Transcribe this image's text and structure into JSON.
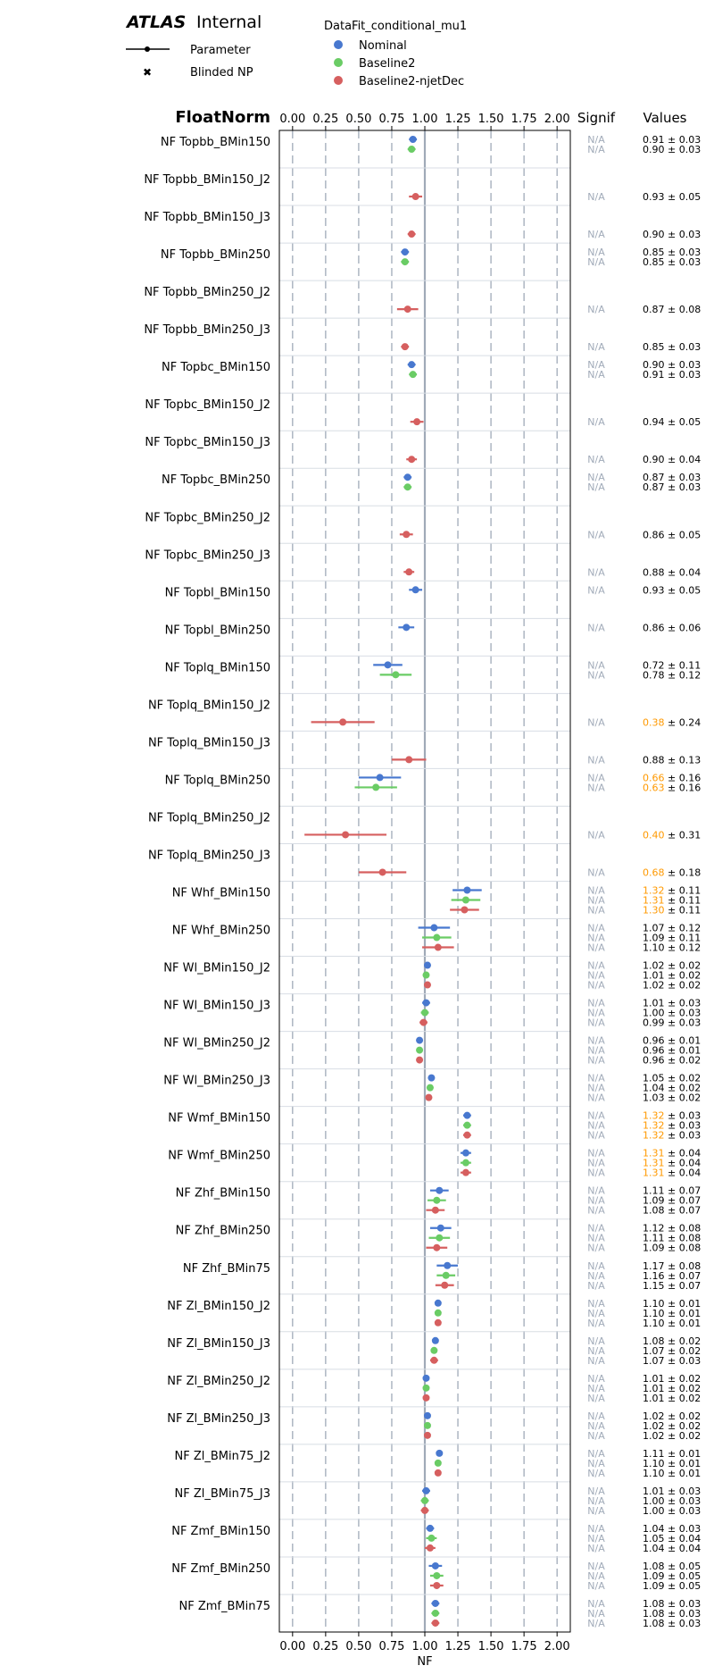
{
  "header": {
    "brand": "ATLAS",
    "brand_suffix": "Internal",
    "legend_title": "DataFit_conditional_mu1",
    "marker_legend": [
      {
        "label": "Parameter",
        "icon": "errorbar-marker-icon"
      },
      {
        "label": "Blinded NP",
        "icon": "x-marker-icon"
      }
    ]
  },
  "columns": {
    "section_title": "FloatNorm",
    "signif_header": "Signif",
    "values_header": "Values",
    "signif_text": "N/A"
  },
  "colors": {
    "highlight": "#ff9900",
    "na_text": "#a0aab8",
    "grid": "#a0aab8",
    "ref_line": "#a0aab8"
  },
  "chart_data": {
    "type": "scatter",
    "orientation": "horizontal-errorbar",
    "xlabel": "NF",
    "xlim": [
      -0.1,
      2.1
    ],
    "xticks": [
      "0.00",
      "0.25",
      "0.50",
      "0.75",
      "1.00",
      "1.25",
      "1.50",
      "1.75",
      "2.00"
    ],
    "reference_line": 1.0,
    "grid": true,
    "legend_position": "top",
    "series": [
      {
        "name": "Nominal",
        "color": "#4878cf"
      },
      {
        "name": "Baseline2",
        "color": "#6acc65"
      },
      {
        "name": "Baseline2-njetDec",
        "color": "#d65f5f"
      }
    ],
    "parameters": [
      {
        "name": "NF Topbb_BMin150",
        "entries": [
          {
            "s": 0,
            "v": 0.91,
            "e": 0.03
          },
          {
            "s": 1,
            "v": 0.9,
            "e": 0.03
          }
        ]
      },
      {
        "name": "NF Topbb_BMin150_J2",
        "entries": [
          {
            "s": 2,
            "v": 0.93,
            "e": 0.05
          }
        ]
      },
      {
        "name": "NF Topbb_BMin150_J3",
        "entries": [
          {
            "s": 2,
            "v": 0.9,
            "e": 0.03
          }
        ]
      },
      {
        "name": "NF Topbb_BMin250",
        "entries": [
          {
            "s": 0,
            "v": 0.85,
            "e": 0.03
          },
          {
            "s": 1,
            "v": 0.85,
            "e": 0.03
          }
        ]
      },
      {
        "name": "NF Topbb_BMin250_J2",
        "entries": [
          {
            "s": 2,
            "v": 0.87,
            "e": 0.08
          }
        ]
      },
      {
        "name": "NF Topbb_BMin250_J3",
        "entries": [
          {
            "s": 2,
            "v": 0.85,
            "e": 0.03
          }
        ]
      },
      {
        "name": "NF Topbc_BMin150",
        "entries": [
          {
            "s": 0,
            "v": 0.9,
            "e": 0.03
          },
          {
            "s": 1,
            "v": 0.91,
            "e": 0.03
          }
        ]
      },
      {
        "name": "NF Topbc_BMin150_J2",
        "entries": [
          {
            "s": 2,
            "v": 0.94,
            "e": 0.05
          }
        ]
      },
      {
        "name": "NF Topbc_BMin150_J3",
        "entries": [
          {
            "s": 2,
            "v": 0.9,
            "e": 0.04
          }
        ]
      },
      {
        "name": "NF Topbc_BMin250",
        "entries": [
          {
            "s": 0,
            "v": 0.87,
            "e": 0.03
          },
          {
            "s": 1,
            "v": 0.87,
            "e": 0.03
          }
        ]
      },
      {
        "name": "NF Topbc_BMin250_J2",
        "entries": [
          {
            "s": 2,
            "v": 0.86,
            "e": 0.05
          }
        ]
      },
      {
        "name": "NF Topbc_BMin250_J3",
        "entries": [
          {
            "s": 2,
            "v": 0.88,
            "e": 0.04
          }
        ]
      },
      {
        "name": "NF Topbl_BMin150",
        "entries": [
          {
            "s": 0,
            "v": 0.93,
            "e": 0.05
          }
        ]
      },
      {
        "name": "NF Topbl_BMin250",
        "entries": [
          {
            "s": 0,
            "v": 0.86,
            "e": 0.06
          }
        ]
      },
      {
        "name": "NF Toplq_BMin150",
        "entries": [
          {
            "s": 0,
            "v": 0.72,
            "e": 0.11
          },
          {
            "s": 1,
            "v": 0.78,
            "e": 0.12
          }
        ]
      },
      {
        "name": "NF Toplq_BMin150_J2",
        "entries": [
          {
            "s": 2,
            "v": 0.38,
            "e": 0.24,
            "hl": true
          }
        ]
      },
      {
        "name": "NF Toplq_BMin150_J3",
        "entries": [
          {
            "s": 2,
            "v": 0.88,
            "e": 0.13
          }
        ]
      },
      {
        "name": "NF Toplq_BMin250",
        "entries": [
          {
            "s": 0,
            "v": 0.66,
            "e": 0.16,
            "hl": true
          },
          {
            "s": 1,
            "v": 0.63,
            "e": 0.16,
            "hl": true
          }
        ]
      },
      {
        "name": "NF Toplq_BMin250_J2",
        "entries": [
          {
            "s": 2,
            "v": 0.4,
            "e": 0.31,
            "hl": true
          }
        ]
      },
      {
        "name": "NF Toplq_BMin250_J3",
        "entries": [
          {
            "s": 2,
            "v": 0.68,
            "e": 0.18,
            "hl": true
          }
        ]
      },
      {
        "name": "NF Whf_BMin150",
        "entries": [
          {
            "s": 0,
            "v": 1.32,
            "e": 0.11,
            "hl": true
          },
          {
            "s": 1,
            "v": 1.31,
            "e": 0.11,
            "hl": true
          },
          {
            "s": 2,
            "v": 1.3,
            "e": 0.11,
            "hl": true
          }
        ]
      },
      {
        "name": "NF Whf_BMin250",
        "entries": [
          {
            "s": 0,
            "v": 1.07,
            "e": 0.12
          },
          {
            "s": 1,
            "v": 1.09,
            "e": 0.11
          },
          {
            "s": 2,
            "v": 1.1,
            "e": 0.12
          }
        ]
      },
      {
        "name": "NF Wl_BMin150_J2",
        "entries": [
          {
            "s": 0,
            "v": 1.02,
            "e": 0.02
          },
          {
            "s": 1,
            "v": 1.01,
            "e": 0.02
          },
          {
            "s": 2,
            "v": 1.02,
            "e": 0.02
          }
        ]
      },
      {
        "name": "NF Wl_BMin150_J3",
        "entries": [
          {
            "s": 0,
            "v": 1.01,
            "e": 0.03
          },
          {
            "s": 1,
            "v": 1.0,
            "e": 0.03
          },
          {
            "s": 2,
            "v": 0.99,
            "e": 0.03
          }
        ]
      },
      {
        "name": "NF Wl_BMin250_J2",
        "entries": [
          {
            "s": 0,
            "v": 0.96,
            "e": 0.01
          },
          {
            "s": 1,
            "v": 0.96,
            "e": 0.01
          },
          {
            "s": 2,
            "v": 0.96,
            "e": 0.02
          }
        ]
      },
      {
        "name": "NF Wl_BMin250_J3",
        "entries": [
          {
            "s": 0,
            "v": 1.05,
            "e": 0.02
          },
          {
            "s": 1,
            "v": 1.04,
            "e": 0.02
          },
          {
            "s": 2,
            "v": 1.03,
            "e": 0.02
          }
        ]
      },
      {
        "name": "NF Wmf_BMin150",
        "entries": [
          {
            "s": 0,
            "v": 1.32,
            "e": 0.03,
            "hl": true
          },
          {
            "s": 1,
            "v": 1.32,
            "e": 0.03,
            "hl": true
          },
          {
            "s": 2,
            "v": 1.32,
            "e": 0.03,
            "hl": true
          }
        ]
      },
      {
        "name": "NF Wmf_BMin250",
        "entries": [
          {
            "s": 0,
            "v": 1.31,
            "e": 0.04,
            "hl": true
          },
          {
            "s": 1,
            "v": 1.31,
            "e": 0.04,
            "hl": true
          },
          {
            "s": 2,
            "v": 1.31,
            "e": 0.04,
            "hl": true
          }
        ]
      },
      {
        "name": "NF Zhf_BMin150",
        "entries": [
          {
            "s": 0,
            "v": 1.11,
            "e": 0.07
          },
          {
            "s": 1,
            "v": 1.09,
            "e": 0.07
          },
          {
            "s": 2,
            "v": 1.08,
            "e": 0.07
          }
        ]
      },
      {
        "name": "NF Zhf_BMin250",
        "entries": [
          {
            "s": 0,
            "v": 1.12,
            "e": 0.08
          },
          {
            "s": 1,
            "v": 1.11,
            "e": 0.08
          },
          {
            "s": 2,
            "v": 1.09,
            "e": 0.08
          }
        ]
      },
      {
        "name": "NF Zhf_BMin75",
        "entries": [
          {
            "s": 0,
            "v": 1.17,
            "e": 0.08
          },
          {
            "s": 1,
            "v": 1.16,
            "e": 0.07
          },
          {
            "s": 2,
            "v": 1.15,
            "e": 0.07
          }
        ]
      },
      {
        "name": "NF Zl_BMin150_J2",
        "entries": [
          {
            "s": 0,
            "v": 1.1,
            "e": 0.01
          },
          {
            "s": 1,
            "v": 1.1,
            "e": 0.01
          },
          {
            "s": 2,
            "v": 1.1,
            "e": 0.01
          }
        ]
      },
      {
        "name": "NF Zl_BMin150_J3",
        "entries": [
          {
            "s": 0,
            "v": 1.08,
            "e": 0.02
          },
          {
            "s": 1,
            "v": 1.07,
            "e": 0.02
          },
          {
            "s": 2,
            "v": 1.07,
            "e": 0.03
          }
        ]
      },
      {
        "name": "NF Zl_BMin250_J2",
        "entries": [
          {
            "s": 0,
            "v": 1.01,
            "e": 0.02
          },
          {
            "s": 1,
            "v": 1.01,
            "e": 0.02
          },
          {
            "s": 2,
            "v": 1.01,
            "e": 0.02
          }
        ]
      },
      {
        "name": "NF Zl_BMin250_J3",
        "entries": [
          {
            "s": 0,
            "v": 1.02,
            "e": 0.02
          },
          {
            "s": 1,
            "v": 1.02,
            "e": 0.02
          },
          {
            "s": 2,
            "v": 1.02,
            "e": 0.02
          }
        ]
      },
      {
        "name": "NF Zl_BMin75_J2",
        "entries": [
          {
            "s": 0,
            "v": 1.11,
            "e": 0.01
          },
          {
            "s": 1,
            "v": 1.1,
            "e": 0.01
          },
          {
            "s": 2,
            "v": 1.1,
            "e": 0.01
          }
        ]
      },
      {
        "name": "NF Zl_BMin75_J3",
        "entries": [
          {
            "s": 0,
            "v": 1.01,
            "e": 0.03
          },
          {
            "s": 1,
            "v": 1.0,
            "e": 0.03
          },
          {
            "s": 2,
            "v": 1.0,
            "e": 0.03
          }
        ]
      },
      {
        "name": "NF Zmf_BMin150",
        "entries": [
          {
            "s": 0,
            "v": 1.04,
            "e": 0.03
          },
          {
            "s": 1,
            "v": 1.05,
            "e": 0.04
          },
          {
            "s": 2,
            "v": 1.04,
            "e": 0.04
          }
        ]
      },
      {
        "name": "NF Zmf_BMin250",
        "entries": [
          {
            "s": 0,
            "v": 1.08,
            "e": 0.05
          },
          {
            "s": 1,
            "v": 1.09,
            "e": 0.05
          },
          {
            "s": 2,
            "v": 1.09,
            "e": 0.05
          }
        ]
      },
      {
        "name": "NF Zmf_BMin75",
        "entries": [
          {
            "s": 0,
            "v": 1.08,
            "e": 0.03
          },
          {
            "s": 1,
            "v": 1.08,
            "e": 0.03
          },
          {
            "s": 2,
            "v": 1.08,
            "e": 0.03
          }
        ]
      }
    ]
  }
}
